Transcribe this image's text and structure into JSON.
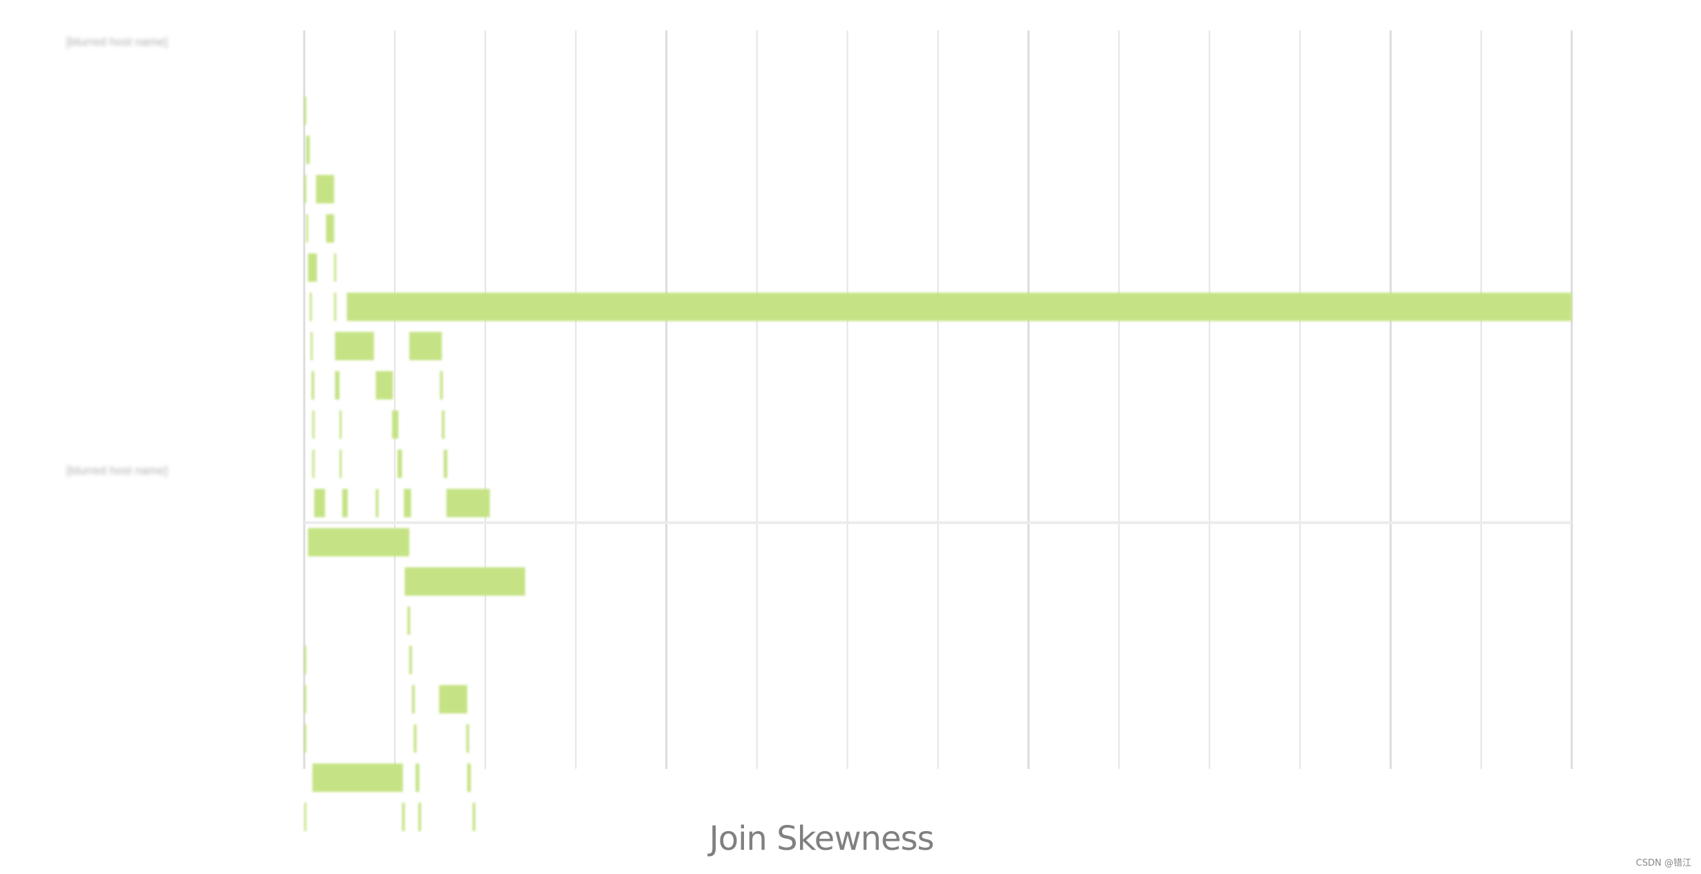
{
  "chart_data": {
    "type": "bar",
    "title": "Join Skewness",
    "xlabel": "",
    "ylabel": "",
    "grid": true,
    "xlim": [
      0,
      14
    ],
    "host_labels": [
      "[blurred host name]",
      "[blurred host name]"
    ],
    "colors": {
      "bar": "#c5e384",
      "grid": "#e4e4e4",
      "group_divider": "#ececec"
    },
    "rows": [
      {
        "host": 0,
        "segments": [
          [
            0.0,
            0.02
          ]
        ]
      },
      {
        "host": 0,
        "segments": [
          [
            0.02,
            0.06
          ]
        ]
      },
      {
        "host": 0,
        "segments": [
          [
            0.0,
            0.02
          ],
          [
            0.13,
            0.33
          ]
        ]
      },
      {
        "host": 0,
        "segments": [
          [
            0.02,
            0.04
          ],
          [
            0.24,
            0.33
          ]
        ]
      },
      {
        "host": 0,
        "segments": [
          [
            0.04,
            0.14
          ],
          [
            0.33,
            0.35
          ]
        ]
      },
      {
        "host": 0,
        "segments": [
          [
            0.06,
            0.08
          ],
          [
            0.33,
            0.35
          ],
          [
            0.47,
            14.0
          ]
        ]
      },
      {
        "host": 0,
        "segments": [
          [
            0.07,
            0.09
          ],
          [
            0.34,
            0.77
          ],
          [
            1.16,
            1.52
          ]
        ]
      },
      {
        "host": 0,
        "segments": [
          [
            0.08,
            0.11
          ],
          [
            0.34,
            0.39
          ],
          [
            0.79,
            0.98
          ],
          [
            1.5,
            1.53
          ]
        ]
      },
      {
        "host": 0,
        "segments": [
          [
            0.09,
            0.11
          ],
          [
            0.39,
            0.41
          ],
          [
            0.97,
            1.04
          ],
          [
            1.52,
            1.55
          ]
        ]
      },
      {
        "host": 0,
        "segments": [
          [
            0.09,
            0.11
          ],
          [
            0.39,
            0.41
          ],
          [
            1.03,
            1.08
          ],
          [
            1.54,
            1.58
          ]
        ]
      },
      {
        "host": 0,
        "segments": [
          [
            0.11,
            0.23
          ],
          [
            0.42,
            0.48
          ],
          [
            0.79,
            0.82
          ],
          [
            1.1,
            1.18
          ],
          [
            1.57,
            2.05
          ]
        ]
      },
      {
        "host": 1,
        "segments": [
          [
            0.04,
            1.16
          ]
        ]
      },
      {
        "host": 1,
        "segments": [
          [
            1.11,
            2.44
          ]
        ]
      },
      {
        "host": 1,
        "segments": [
          [
            1.14,
            1.17
          ]
        ]
      },
      {
        "host": 1,
        "segments": [
          [
            0.0,
            0.02
          ],
          [
            1.16,
            1.19
          ]
        ]
      },
      {
        "host": 1,
        "segments": [
          [
            0.0,
            0.02
          ],
          [
            1.19,
            1.22
          ],
          [
            1.49,
            1.8
          ]
        ]
      },
      {
        "host": 1,
        "segments": [
          [
            0.0,
            0.02
          ],
          [
            1.21,
            1.24
          ],
          [
            1.79,
            1.82
          ]
        ]
      },
      {
        "host": 1,
        "segments": [
          [
            0.09,
            1.09
          ],
          [
            1.23,
            1.27
          ],
          [
            1.8,
            1.84
          ]
        ]
      },
      {
        "host": 1,
        "segments": [
          [
            0.0,
            0.02
          ],
          [
            1.08,
            1.11
          ],
          [
            1.26,
            1.29
          ],
          [
            1.86,
            1.89
          ]
        ]
      }
    ]
  },
  "watermark": "CSDN @错江"
}
